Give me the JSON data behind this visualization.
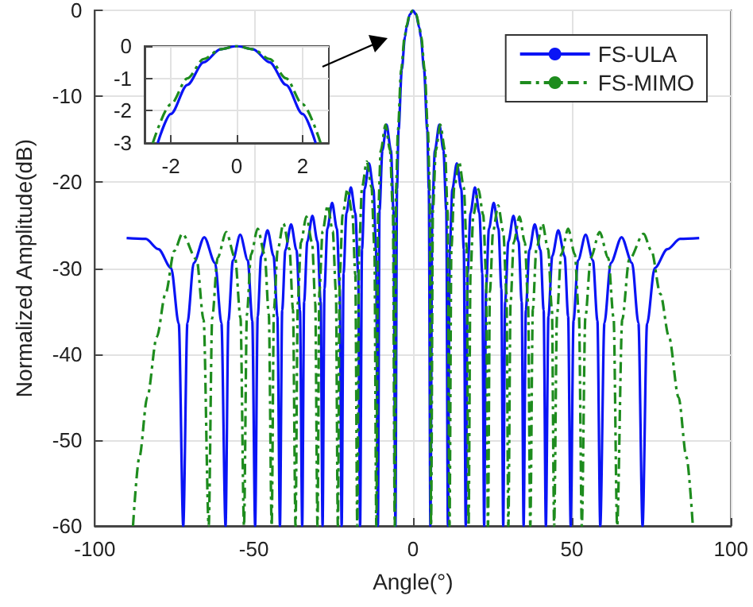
{
  "chart_data": [
    {
      "type": "line",
      "xlabel": "Angle(°)",
      "ylabel": "Normalized Amplitude(dB)",
      "xlim": [
        -100,
        100
      ],
      "xticks": [
        -100,
        -50,
        0,
        50,
        100
      ],
      "ylim": [
        -60,
        0
      ],
      "yticks": [
        -60,
        -50,
        -40,
        -30,
        -20,
        -10,
        0
      ],
      "grid": true,
      "legend": "top right",
      "series": [
        {
          "name": "FS-ULA",
          "color": "#0a14f5",
          "line_style": "solid",
          "x": [
            -90,
            -84,
            -80,
            -76,
            -73.6,
            -72.2,
            -70.9,
            -68.9,
            -65.6,
            -62.2,
            -60.2,
            -58.9,
            -58.0,
            -56.6,
            -54.3,
            -51.9,
            -50.5,
            -49.6,
            -48.8,
            -47.7,
            -45.7,
            -43.8,
            -42.6,
            -41.8,
            -41.1,
            -40.1,
            -38.3,
            -36.6,
            -35.5,
            -34.8,
            -34.2,
            -33.2,
            -31.6,
            -30.0,
            -29.0,
            -28.4,
            -27.8,
            -26.9,
            -25.4,
            -23.9,
            -23.0,
            -22.4,
            -21.8,
            -20.9,
            -19.5,
            -18.1,
            -17.2,
            -16.6,
            -16.0,
            -15.2,
            -13.8,
            -12.4,
            -11.6,
            -11.0,
            -10.5,
            -9.6,
            -8.3,
            -6.9,
            -6.1,
            -5.5,
            -5.0,
            -4.5,
            -3.5,
            -2.5,
            -2,
            -1,
            0,
            1,
            2,
            2.5,
            3.5,
            4.5,
            5.0,
            5.5,
            6.1,
            6.9,
            8.3,
            9.6,
            10.5,
            11.0,
            11.6,
            12.4,
            13.8,
            15.2,
            16.0,
            16.6,
            17.2,
            18.1,
            19.5,
            20.9,
            21.8,
            22.4,
            23.0,
            23.9,
            25.4,
            26.9,
            27.8,
            28.4,
            29.0,
            30.0,
            31.6,
            33.2,
            34.2,
            34.8,
            35.5,
            36.6,
            38.3,
            40.1,
            41.1,
            41.8,
            42.6,
            43.8,
            45.7,
            47.7,
            48.8,
            49.6,
            50.5,
            51.9,
            54.3,
            56.6,
            58.0,
            58.9,
            60.2,
            62.2,
            65.6,
            68.9,
            70.9,
            72.2,
            73.6,
            76,
            80,
            84,
            90
          ],
          "values": [
            -26.5,
            -26.6,
            -27.8,
            -30.0,
            -36.5,
            -60,
            -36.4,
            -29.4,
            -26.4,
            -29.4,
            -36.4,
            -60,
            -36.1,
            -29.1,
            -26.1,
            -29.1,
            -36.1,
            -60,
            -35.6,
            -28.6,
            -25.6,
            -28.6,
            -35.6,
            -60,
            -34.9,
            -27.9,
            -24.9,
            -27.9,
            -34.9,
            -60,
            -33.9,
            -26.9,
            -23.9,
            -26.9,
            -33.9,
            -60,
            -32.4,
            -25.4,
            -22.4,
            -25.4,
            -32.4,
            -60,
            -30.6,
            -23.6,
            -20.6,
            -23.6,
            -30.6,
            -60,
            -27.8,
            -20.8,
            -17.8,
            -20.8,
            -27.8,
            -60,
            -23.3,
            -16.3,
            -13.3,
            -16.3,
            -23.3,
            -60,
            -20.8,
            -13.9,
            -6.9,
            -3.1,
            -2.0,
            -0.5,
            0,
            -0.5,
            -2.0,
            -3.1,
            -6.9,
            -13.9,
            -20.8,
            -60,
            -23.3,
            -16.3,
            -13.3,
            -16.3,
            -23.3,
            -60,
            -27.8,
            -20.8,
            -17.8,
            -20.8,
            -27.8,
            -60,
            -30.6,
            -23.6,
            -20.6,
            -23.6,
            -30.6,
            -60,
            -32.4,
            -25.4,
            -22.4,
            -25.4,
            -32.4,
            -60,
            -33.9,
            -26.9,
            -23.9,
            -26.9,
            -33.9,
            -60,
            -34.9,
            -27.9,
            -24.9,
            -27.9,
            -34.9,
            -60,
            -35.6,
            -28.6,
            -25.6,
            -28.6,
            -35.6,
            -60,
            -36.1,
            -29.1,
            -26.1,
            -29.1,
            -36.1,
            -60,
            -36.4,
            -29.4,
            -26.4,
            -29.4,
            -36.4,
            -60,
            -36.5,
            -30.0,
            -27.8,
            -26.6,
            -26.5
          ]
        },
        {
          "name": "FS-MIMO",
          "color": "#1e8c1e",
          "line_style": "dashed",
          "x": [
            -88,
            -86,
            -83.5,
            -80.5,
            -77.8,
            -75,
            -72.5,
            -68,
            -65.8,
            -64.2,
            -63.1,
            -61.4,
            -58.7,
            -55.9,
            -54.2,
            -53.1,
            -52.2,
            -50.9,
            -48.8,
            -46.6,
            -45.3,
            -44.4,
            -43.7,
            -42.5,
            -40.7,
            -38.8,
            -37.7,
            -36.9,
            -36.2,
            -35.2,
            -33.5,
            -31.7,
            -30.7,
            -30.0,
            -29.4,
            -28.4,
            -26.8,
            -25.2,
            -24.2,
            -23.6,
            -23.0,
            -22.1,
            -20.6,
            -19.0,
            -18.1,
            -17.5,
            -16.9,
            -16.0,
            -14.5,
            -13.0,
            -12.1,
            -11.5,
            -10.9,
            -10.1,
            -8.6,
            -7.2,
            -6.3,
            -5.7,
            -5.3,
            -4.7,
            -3.7,
            -2.6,
            -2,
            -1,
            0,
            1,
            2,
            2.6,
            3.7,
            4.7,
            5.3,
            5.7,
            6.3,
            7.2,
            8.6,
            10.1,
            10.9,
            11.5,
            12.1,
            13.0,
            14.5,
            16.0,
            16.9,
            17.5,
            18.1,
            19.0,
            20.6,
            22.1,
            23.0,
            23.6,
            24.2,
            25.2,
            26.8,
            28.4,
            29.4,
            30.0,
            30.7,
            31.7,
            33.5,
            35.2,
            36.2,
            36.9,
            37.7,
            38.8,
            40.7,
            42.5,
            43.7,
            44.4,
            45.3,
            46.6,
            48.8,
            50.9,
            52.2,
            53.1,
            54.2,
            55.9,
            58.7,
            61.4,
            63.1,
            64.2,
            65.8,
            68,
            72.5,
            75,
            77.8,
            80.5,
            83.5,
            86,
            88
          ],
          "values": [
            -60,
            -52,
            -45,
            -38,
            -33,
            -28,
            -26,
            -29,
            -36,
            -60,
            -35.8,
            -28.8,
            -25.8,
            -28.8,
            -35.8,
            -60,
            -35.4,
            -28.4,
            -25.4,
            -28.4,
            -35.4,
            -60,
            -34.8,
            -27.8,
            -24.8,
            -27.8,
            -34.8,
            -60,
            -34,
            -27,
            -24,
            -27,
            -34,
            -60,
            -32.7,
            -25.7,
            -22.7,
            -25.7,
            -32.7,
            -60,
            -30.8,
            -23.8,
            -20.8,
            -23.8,
            -30.8,
            -60,
            -27.6,
            -20.6,
            -17.6,
            -20.6,
            -27.6,
            -60,
            -23.3,
            -16.3,
            -13.3,
            -16.3,
            -23.3,
            -60,
            -20.8,
            -13.9,
            -6.9,
            -3.1,
            -1.8,
            -0.4,
            0,
            -0.4,
            -1.8,
            -3.1,
            -6.9,
            -13.9,
            -20.8,
            -60,
            -23.3,
            -16.3,
            -13.3,
            -16.3,
            -23.3,
            -60,
            -27.6,
            -20.6,
            -17.6,
            -20.6,
            -27.6,
            -60,
            -30.8,
            -23.8,
            -20.8,
            -23.8,
            -30.8,
            -60,
            -32.7,
            -25.7,
            -22.7,
            -25.7,
            -32.7,
            -60,
            -34,
            -27,
            -24,
            -27,
            -34,
            -60,
            -34.8,
            -27.8,
            -24.8,
            -27.8,
            -34.8,
            -60,
            -35.4,
            -28.4,
            -25.4,
            -28.4,
            -35.4,
            -60,
            -35.8,
            -28.8,
            -25.8,
            -28.8,
            -35.8,
            -60,
            -36,
            -29,
            -26,
            -28,
            -33,
            -38,
            -45,
            -52,
            -60
          ]
        }
      ]
    },
    {
      "type": "line",
      "xlim": [
        -2.8,
        2.8
      ],
      "xticks": [
        -2,
        0,
        2
      ],
      "ylim": [
        -3,
        0
      ],
      "yticks": [
        -3,
        -2,
        -1,
        0
      ],
      "grid": true,
      "series": [
        {
          "color": "#0a14f5",
          "line_style": "solid",
          "x": [
            -2.4,
            -2,
            -1.5,
            -1,
            -0.5,
            0,
            0.5,
            1,
            1.5,
            2,
            2.4
          ],
          "values": [
            -3,
            -2.1,
            -1.2,
            -0.5,
            -0.1,
            0,
            -0.1,
            -0.5,
            -1.2,
            -2.1,
            -3
          ]
        },
        {
          "color": "#1e8c1e",
          "line_style": "dashed",
          "x": [
            -2.55,
            -2,
            -1.5,
            -1,
            -0.5,
            0,
            0.5,
            1,
            1.5,
            2,
            2.55
          ],
          "values": [
            -3,
            -1.8,
            -1.0,
            -0.4,
            -0.1,
            0,
            -0.1,
            -0.4,
            -1.0,
            -1.8,
            -3
          ]
        }
      ]
    }
  ]
}
